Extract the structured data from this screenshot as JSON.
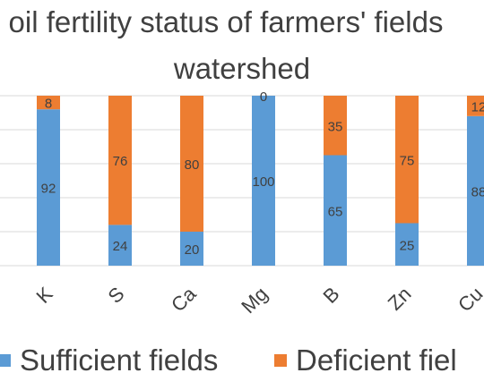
{
  "chart_data": {
    "type": "bar",
    "stacked": true,
    "percent_stacked": true,
    "title_lines": [
      "oil fertility status of farmers' fields",
      "watershed"
    ],
    "categories": [
      "K",
      "S",
      "Ca",
      "Mg",
      "B",
      "Zn",
      "Cu"
    ],
    "series": [
      {
        "name": "Sufficient fields",
        "color": "#5b9bd5",
        "values": [
          92,
          24,
          20,
          100,
          65,
          25,
          88
        ]
      },
      {
        "name": "Deficient fiel",
        "color": "#ed7d31",
        "values": [
          8,
          76,
          80,
          0,
          35,
          75,
          12
        ]
      }
    ],
    "ylim": [
      0,
      100
    ],
    "grid": true,
    "legend_position": "bottom"
  }
}
